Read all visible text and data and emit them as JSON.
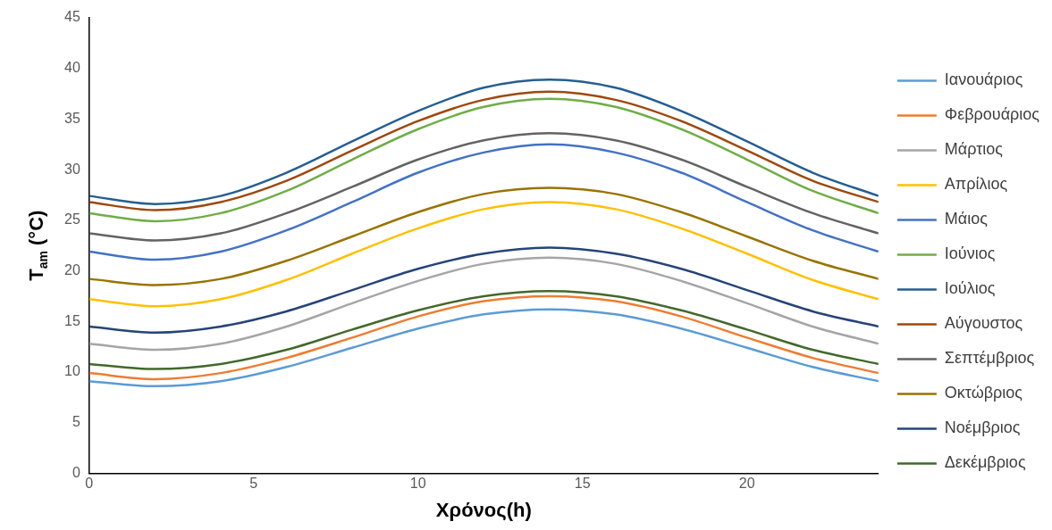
{
  "chart_data": {
    "type": "line",
    "xlabel": "Χρόνος(h)",
    "ylabel": "T$_{am}$ (°C)",
    "x": [
      0,
      2,
      4,
      6,
      8,
      10,
      12,
      14,
      16,
      18,
      20,
      22,
      24
    ],
    "xlim": [
      0,
      24
    ],
    "xticks": [
      0,
      5,
      10,
      15,
      20
    ],
    "ylim": [
      0,
      45
    ],
    "yticks": [
      0,
      5,
      10,
      15,
      20,
      25,
      30,
      35,
      40,
      45
    ],
    "grid": false,
    "legend": "right",
    "marker": "none",
    "line_style": "solid",
    "series": [
      {
        "name": "Ιανουάριος",
        "color": "#5b9bd5",
        "values": [
          9.1,
          8.6,
          9.1,
          10.5,
          12.4,
          14.3,
          15.7,
          16.2,
          15.7,
          14.3,
          12.4,
          10.5,
          9.1
        ]
      },
      {
        "name": "Φεβρουάριος",
        "color": "#ed7d31",
        "values": [
          9.9,
          9.3,
          9.9,
          11.4,
          13.4,
          15.5,
          17.0,
          17.5,
          17.0,
          15.5,
          13.4,
          11.4,
          9.9
        ]
      },
      {
        "name": "Μάρτιος",
        "color": "#a5a5a5",
        "values": [
          12.8,
          12.2,
          12.8,
          14.5,
          16.8,
          19.0,
          20.7,
          21.3,
          20.7,
          19.0,
          16.8,
          14.5,
          12.8
        ]
      },
      {
        "name": "Απρίλιος",
        "color": "#ffc000",
        "values": [
          17.2,
          16.5,
          17.2,
          19.1,
          21.7,
          24.2,
          26.1,
          26.8,
          26.1,
          24.2,
          21.7,
          19.1,
          17.2
        ]
      },
      {
        "name": "Μάιος",
        "color": "#4472c4",
        "values": [
          21.9,
          21.1,
          21.9,
          24.0,
          26.8,
          29.7,
          31.7,
          32.5,
          31.7,
          29.7,
          26.8,
          24.0,
          21.9
        ]
      },
      {
        "name": "Ιούνιος",
        "color": "#70ad47",
        "values": [
          25.7,
          24.9,
          25.7,
          27.9,
          31.0,
          34.0,
          36.2,
          37.0,
          36.2,
          34.0,
          31.0,
          27.9,
          25.7
        ]
      },
      {
        "name": "Ιούλιος",
        "color": "#255e91",
        "values": [
          27.4,
          26.6,
          27.4,
          29.7,
          32.8,
          35.8,
          38.1,
          38.9,
          38.1,
          35.8,
          32.8,
          29.7,
          27.4
        ]
      },
      {
        "name": "Αύγουστος",
        "color": "#9e480e",
        "values": [
          26.8,
          26.0,
          26.8,
          28.9,
          31.9,
          34.8,
          36.9,
          37.7,
          36.9,
          34.8,
          31.9,
          28.9,
          26.8
        ]
      },
      {
        "name": "Σεπτέμβριος",
        "color": "#636363",
        "values": [
          23.7,
          23.0,
          23.7,
          25.7,
          28.3,
          31.0,
          32.9,
          33.6,
          32.9,
          31.0,
          28.3,
          25.7,
          23.7
        ]
      },
      {
        "name": "Οκτώβριος",
        "color": "#997300",
        "values": [
          19.2,
          18.6,
          19.2,
          21.0,
          23.4,
          25.8,
          27.6,
          28.2,
          27.6,
          25.8,
          23.4,
          21.0,
          19.2
        ]
      },
      {
        "name": "Νοέμβριος",
        "color": "#264478",
        "values": [
          14.5,
          13.9,
          14.5,
          16.0,
          18.1,
          20.2,
          21.7,
          22.3,
          21.7,
          20.2,
          18.1,
          16.0,
          14.5
        ]
      },
      {
        "name": "Δεκέμβριος",
        "color": "#43682b",
        "values": [
          10.8,
          10.3,
          10.8,
          12.2,
          14.2,
          16.1,
          17.5,
          18.0,
          17.5,
          16.1,
          14.2,
          12.2,
          10.8
        ]
      }
    ]
  }
}
